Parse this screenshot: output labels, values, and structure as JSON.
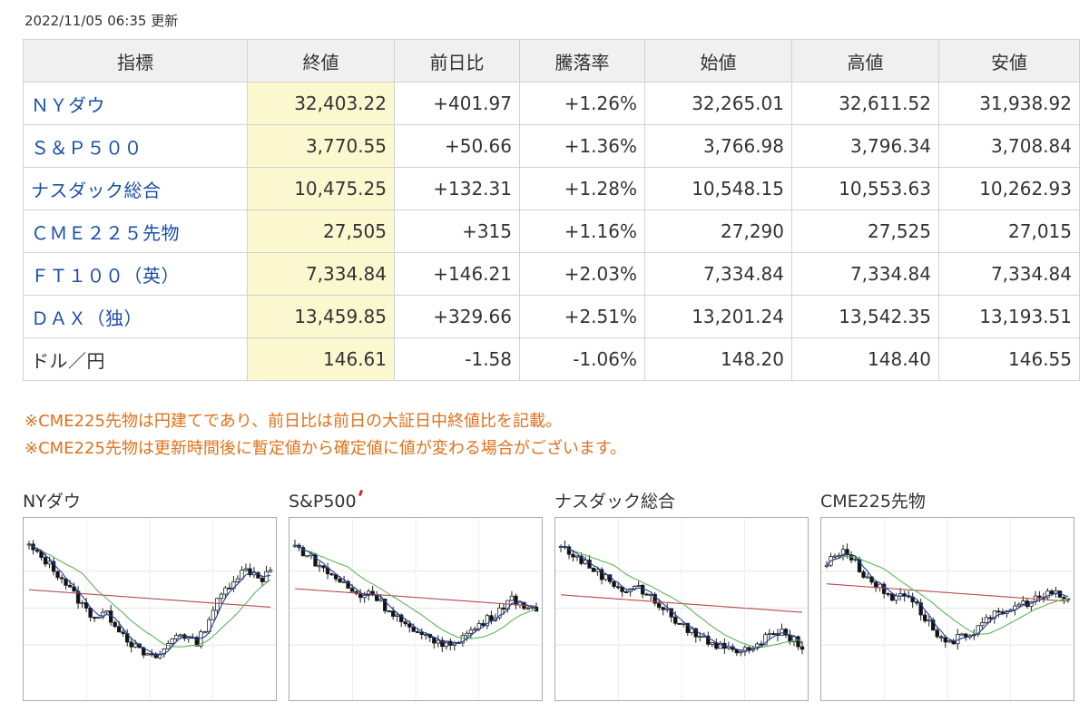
{
  "timestamp": "2022/11/05 06:35 更新",
  "table": {
    "headers": [
      "指標",
      "終値",
      "前日比",
      "騰落率",
      "始値",
      "高値",
      "安値"
    ],
    "rows": [
      {
        "name": "ＮＹダウ",
        "close": "32,403.22",
        "change": "+401.97",
        "rate": "+1.26%",
        "open": "32,265.01",
        "high": "32,611.52",
        "low": "31,938.92",
        "dir": "pos",
        "link": true
      },
      {
        "name": "Ｓ＆Ｐ５００",
        "close": "3,770.55",
        "change": "+50.66",
        "rate": "+1.36%",
        "open": "3,766.98",
        "high": "3,796.34",
        "low": "3,708.84",
        "dir": "pos",
        "link": true
      },
      {
        "name": "ナスダック総合",
        "close": "10,475.25",
        "change": "+132.31",
        "rate": "+1.28%",
        "open": "10,548.15",
        "high": "10,553.63",
        "low": "10,262.93",
        "dir": "pos",
        "link": true
      },
      {
        "name": "ＣＭＥ２２５先物",
        "close": "27,505",
        "change": "+315",
        "rate": "+1.16%",
        "open": "27,290",
        "high": "27,525",
        "low": "27,015",
        "dir": "pos",
        "link": true
      },
      {
        "name": "ＦＴ１００（英）",
        "close": "7,334.84",
        "change": "+146.21",
        "rate": "+2.03%",
        "open": "7,334.84",
        "high": "7,334.84",
        "low": "7,334.84",
        "dir": "pos",
        "link": true
      },
      {
        "name": "ＤＡＸ（独）",
        "close": "13,459.85",
        "change": "+329.66",
        "rate": "+2.51%",
        "open": "13,201.24",
        "high": "13,542.35",
        "low": "13,193.51",
        "dir": "pos",
        "link": true
      },
      {
        "name": "ドル／円",
        "close": "146.61",
        "change": "-1.58",
        "rate": "-1.06%",
        "open": "148.20",
        "high": "148.40",
        "low": "146.55",
        "dir": "neg",
        "link": false
      }
    ]
  },
  "notes": [
    "※CME225先物は円建てであり、前日比は前日の大証日中終値比を記載。",
    "※CME225先物は更新時間後に暫定値から確定値に値が変わる場合がございます。"
  ],
  "charts": [
    {
      "title": "NYダウ",
      "shape": [
        0.92,
        0.86,
        0.82,
        0.76,
        0.7,
        0.62,
        0.55,
        0.48,
        0.44,
        0.47,
        0.42,
        0.35,
        0.28,
        0.22,
        0.18,
        0.16,
        0.2,
        0.28,
        0.34,
        0.3,
        0.26,
        0.35,
        0.48,
        0.58,
        0.66,
        0.72,
        0.76,
        0.74,
        0.7,
        0.76
      ],
      "colors": {
        "ma_short": "#1a3fa0",
        "ma_mid": "#5fb55a",
        "ma_long": "#b44a4a"
      }
    },
    {
      "title": "S&P500",
      "shape": [
        0.92,
        0.88,
        0.84,
        0.78,
        0.74,
        0.7,
        0.66,
        0.6,
        0.58,
        0.62,
        0.56,
        0.5,
        0.46,
        0.4,
        0.34,
        0.3,
        0.32,
        0.28,
        0.24,
        0.28,
        0.3,
        0.34,
        0.38,
        0.42,
        0.46,
        0.52,
        0.56,
        0.54,
        0.5,
        0.46
      ],
      "colors": {
        "ma_short": "#1a3fa0",
        "ma_mid": "#5fb55a",
        "ma_long": "#b44a4a"
      }
    },
    {
      "title": "ナスダック総合",
      "shape": [
        0.92,
        0.88,
        0.84,
        0.8,
        0.76,
        0.72,
        0.68,
        0.64,
        0.62,
        0.66,
        0.6,
        0.56,
        0.52,
        0.46,
        0.4,
        0.36,
        0.34,
        0.3,
        0.26,
        0.24,
        0.26,
        0.22,
        0.2,
        0.24,
        0.28,
        0.3,
        0.34,
        0.32,
        0.28,
        0.24
      ],
      "colors": {
        "ma_short": "#1a3fa0",
        "ma_mid": "#5fb55a",
        "ma_long": "#b44a4a"
      }
    },
    {
      "title": "CME225先物",
      "shape": [
        0.8,
        0.86,
        0.9,
        0.84,
        0.76,
        0.7,
        0.66,
        0.6,
        0.56,
        0.62,
        0.58,
        0.5,
        0.42,
        0.34,
        0.28,
        0.24,
        0.32,
        0.26,
        0.38,
        0.44,
        0.46,
        0.44,
        0.5,
        0.52,
        0.54,
        0.56,
        0.58,
        0.6,
        0.58,
        0.56
      ],
      "colors": {
        "ma_short": "#1a3fa0",
        "ma_mid": "#5fb55a",
        "ma_long": "#b44a4a"
      }
    }
  ]
}
